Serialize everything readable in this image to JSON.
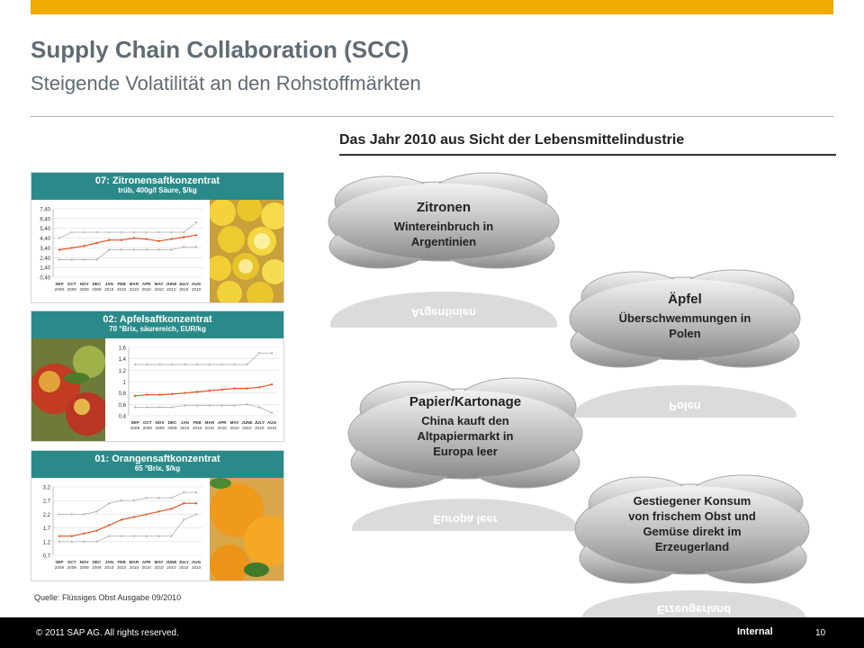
{
  "header": {
    "title": "Supply Chain Collaboration (SCC)",
    "subtitle": "Steigende Volatilität an den Rohstoffmärkten",
    "accent_color": "#f0ab00",
    "title_color": "#5f6b75"
  },
  "section": {
    "title": "Das Jahr 2010 aus Sicht der Lebensmittelindustrie"
  },
  "panels": [
    {
      "title": "07: Zitronensaftkonzentrat",
      "subtitle": "trüb, 400g/l Säure, $/kg",
      "photo": "lemons-photo",
      "ticks": [
        "7,40",
        "6,40",
        "5,40",
        "4,40",
        "3,40",
        "2,40",
        "1,40",
        "0,40"
      ]
    },
    {
      "title": "02: Apfelsaftkonzentrat",
      "subtitle": "70 °Brix, säurereich, EUR/kg",
      "photo": "apples-photo",
      "ticks": [
        "1,6",
        "1,4",
        "1,2",
        "1",
        "0,8",
        "0,6",
        "0,4"
      ]
    },
    {
      "title": "01: Orangensaftkonzentrat",
      "subtitle": "65 °Brix, $/kg",
      "photo": "oranges-photo",
      "ticks": [
        "3,2",
        "2,7",
        "2,2",
        "1,7",
        "1,2",
        "0,7"
      ]
    }
  ],
  "chart_months": [
    "SEP 2009",
    "OCT 2009",
    "NOV 2009",
    "DEC 2009",
    "JAN 2010",
    "FEB 2010",
    "MAR 2010",
    "APR 2010",
    "MAY 2010",
    "JUNE 2010",
    "JULY 2010",
    "AUG 2010"
  ],
  "chart_data": [
    {
      "type": "line",
      "title": "07: Zitronensaftkonzentrat",
      "subtitle": "trüb, 400g/l Säure, $/kg",
      "x": [
        "SEP 2009",
        "OCT 2009",
        "NOV 2009",
        "DEC 2009",
        "JAN 2010",
        "FEB 2010",
        "MAR 2010",
        "APR 2010",
        "MAY 2010",
        "JUNE 2010",
        "JULY 2010",
        "AUG 2010"
      ],
      "ylim": [
        0.4,
        7.4
      ],
      "series": [
        {
          "color": "#b8b8b8",
          "values": [
            4.4,
            5.0,
            5.0,
            5.0,
            5.0,
            5.0,
            5.0,
            5.0,
            5.0,
            5.0,
            5.0,
            6.0
          ]
        },
        {
          "color": "#e0562a",
          "values": [
            3.2,
            3.4,
            3.6,
            3.9,
            4.2,
            4.2,
            4.4,
            4.3,
            4.1,
            4.3,
            4.5,
            4.7
          ]
        },
        {
          "color": "#b8b8b8",
          "values": [
            2.2,
            2.2,
            2.2,
            2.2,
            3.2,
            3.2,
            3.2,
            3.2,
            3.2,
            3.2,
            3.5,
            3.5
          ]
        }
      ]
    },
    {
      "type": "line",
      "title": "02: Apfelsaftkonzentrat",
      "subtitle": "70 °Brix, säurereich, EUR/kg",
      "x": [
        "SEP 2009",
        "OCT 2009",
        "NOV 2009",
        "DEC 2009",
        "JAN 2010",
        "FEB 2010",
        "MAR 2010",
        "APR 2010",
        "MAY 2010",
        "JUNE 2010",
        "JULY 2010",
        "AUG 2010"
      ],
      "ylim": [
        0.4,
        1.6
      ],
      "series": [
        {
          "color": "#b8b8b8",
          "values": [
            1.3,
            1.3,
            1.3,
            1.3,
            1.3,
            1.3,
            1.3,
            1.3,
            1.3,
            1.3,
            1.5,
            1.5
          ]
        },
        {
          "color": "#e0562a",
          "values": [
            0.75,
            0.77,
            0.77,
            0.78,
            0.8,
            0.82,
            0.84,
            0.86,
            0.88,
            0.88,
            0.9,
            0.95
          ]
        },
        {
          "color": "#b8b8b8",
          "values": [
            0.55,
            0.55,
            0.55,
            0.55,
            0.58,
            0.58,
            0.58,
            0.58,
            0.58,
            0.6,
            0.55,
            0.45
          ]
        }
      ]
    },
    {
      "type": "line",
      "title": "01: Orangensaftkonzentrat",
      "subtitle": "65 °Brix, $/kg",
      "x": [
        "SEP 2009",
        "OCT 2009",
        "NOV 2009",
        "DEC 2009",
        "JAN 2010",
        "FEB 2010",
        "MAR 2010",
        "APR 2010",
        "MAY 2010",
        "JUNE 2010",
        "JULY 2010",
        "AUG 2010"
      ],
      "ylim": [
        0.7,
        3.2
      ],
      "series": [
        {
          "color": "#b8b8b8",
          "values": [
            2.2,
            2.2,
            2.2,
            2.3,
            2.6,
            2.7,
            2.7,
            2.8,
            2.8,
            2.8,
            3.0,
            3.0
          ]
        },
        {
          "color": "#e0562a",
          "values": [
            1.4,
            1.4,
            1.5,
            1.6,
            1.8,
            2.0,
            2.1,
            2.2,
            2.3,
            2.4,
            2.6,
            2.6
          ]
        },
        {
          "color": "#b8b8b8",
          "values": [
            1.2,
            1.2,
            1.2,
            1.2,
            1.4,
            1.4,
            1.4,
            1.4,
            1.4,
            1.4,
            2.0,
            2.2
          ]
        }
      ]
    }
  ],
  "source": "Quelle: Flüssiges Obst Ausgabe 09/2010",
  "clouds": [
    {
      "title": "Zitronen",
      "desc_lines": [
        "Wintereinbruch in",
        "Argentinien"
      ],
      "reflection": "Argentinien"
    },
    {
      "title": "Äpfel",
      "desc_lines": [
        "Überschwemmungen in",
        "Polen"
      ],
      "reflection": "Polen"
    },
    {
      "title": "Papier/Kartonage",
      "desc_lines": [
        "China kauft den",
        "Altpapiermarkt in",
        "Europa leer"
      ],
      "reflection": "Europa leer"
    },
    {
      "title": "",
      "desc_lines": [
        "Gestiegener Konsum",
        "von frischem Obst und",
        "Gemüse direkt im",
        "Erzeugerland"
      ],
      "reflection": "Erzeugerland"
    }
  ],
  "footer": {
    "copyright": "© 2011 SAP AG. All rights reserved.",
    "classification": "Internal",
    "page_number": "10"
  }
}
